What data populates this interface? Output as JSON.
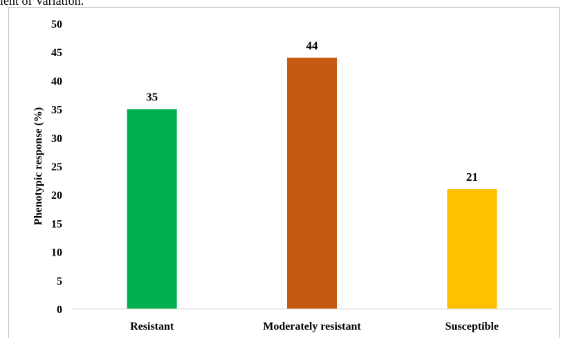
{
  "caption": "ient of Variation.",
  "chart_data": {
    "type": "bar",
    "title": "",
    "xlabel": "",
    "ylabel": "Phenotypic response (%)",
    "categories": [
      "Resistant",
      "Moderately resistant",
      "Susceptible"
    ],
    "values": [
      35,
      44,
      21
    ],
    "data_labels": [
      "35",
      "44",
      "21"
    ],
    "colors": [
      "#00b050",
      "#c55a11",
      "#ffc000"
    ],
    "ylim": [
      0,
      50
    ],
    "yticks": [
      0,
      5,
      10,
      15,
      20,
      25,
      30,
      35,
      40,
      45,
      50
    ],
    "grid": false,
    "legend": "none"
  }
}
